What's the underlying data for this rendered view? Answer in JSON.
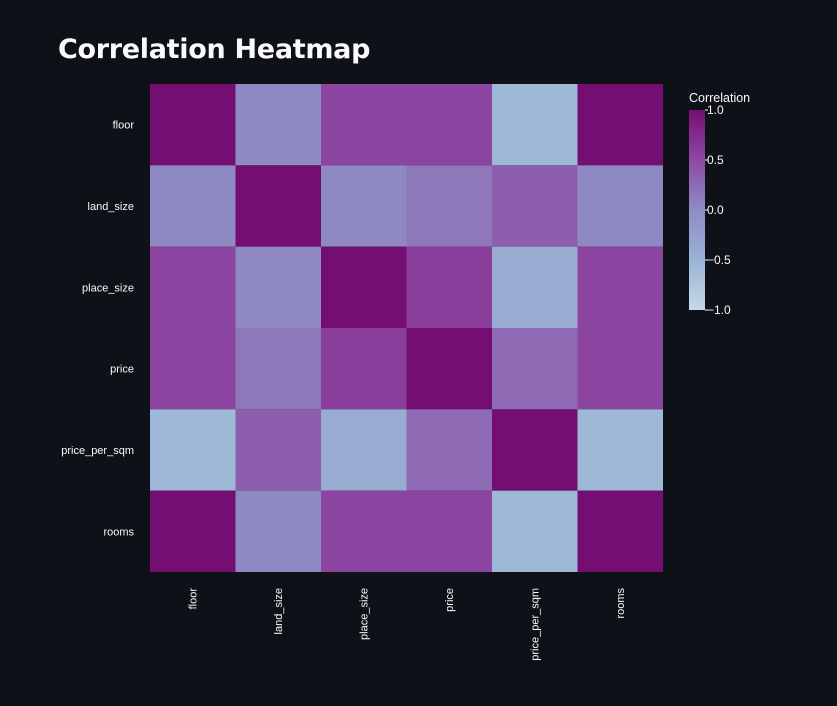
{
  "page": {
    "title": "Correlation Heatmap"
  },
  "chart_data": {
    "type": "heatmap",
    "title": "Correlation Heatmap",
    "x_labels": [
      "floor",
      "land_size",
      "place_size",
      "price",
      "price_per_sqm",
      "rooms"
    ],
    "y_labels": [
      "floor",
      "land_size",
      "place_size",
      "price",
      "price_per_sqm",
      "rooms"
    ],
    "z": [
      [
        1.0,
        0.02,
        0.55,
        0.55,
        -0.55,
        1.0
      ],
      [
        0.02,
        1.0,
        0.02,
        0.15,
        0.35,
        0.02
      ],
      [
        0.55,
        0.02,
        1.0,
        0.6,
        -0.4,
        0.55
      ],
      [
        0.55,
        0.15,
        0.6,
        1.0,
        0.25,
        0.55
      ],
      [
        -0.55,
        0.35,
        -0.4,
        0.25,
        1.0,
        -0.55
      ],
      [
        1.0,
        0.02,
        0.55,
        0.55,
        -0.55,
        1.0
      ]
    ],
    "zmin": -1.0,
    "zmax": 1.0,
    "colorscale": [
      [
        0.0,
        "#c4d9e6"
      ],
      [
        0.25,
        "#9ab4d6"
      ],
      [
        0.5,
        "#8e8cc4"
      ],
      [
        0.75,
        "#8d4aa4"
      ],
      [
        1.0,
        "#750e72"
      ]
    ],
    "colorbar": {
      "title": "Correlation",
      "tick_values": [
        1.0,
        0.5,
        0.0,
        -0.5,
        -1.0
      ],
      "tick_labels": [
        "1.0",
        "0.5",
        "0.0",
        "−0.5",
        "−1.0"
      ]
    },
    "background_color": "#0e1117",
    "grid": false
  }
}
